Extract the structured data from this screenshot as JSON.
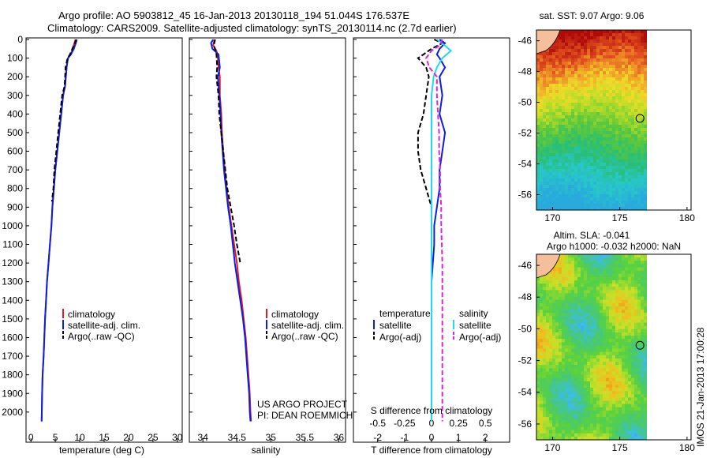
{
  "header": {
    "line1": "Argo profile: AO 5903812_45 16-Jan-2013 20130118_194 51.044S 176.537E",
    "line2": "Climatology: CARS2009. Satellite-adjusted climatology: synTS_20130114.nc (2.7d earlier)"
  },
  "colors": {
    "clim": "#e41a1c",
    "sat": "#0a1fe6",
    "argo": "#000000",
    "sat_sal": "#22d8ee",
    "argo_sal": "#dd22dd"
  },
  "chart_data": [
    {
      "type": "line",
      "xlabel": "temperature (deg C)",
      "ylabel": "",
      "xlim": [
        -1,
        31
      ],
      "ylim": [
        2060,
        0
      ],
      "xticks": [
        0,
        5,
        10,
        15,
        20,
        25,
        30
      ],
      "yticks": [
        0,
        100,
        200,
        300,
        400,
        500,
        600,
        700,
        800,
        900,
        1000,
        1100,
        1200,
        1300,
        1400,
        1500,
        1600,
        1700,
        1800,
        1900,
        2000
      ],
      "legend": [
        "climatology",
        "satellite-adj. clim.",
        "Argo(..raw -QC)"
      ],
      "series": [
        {
          "name": "climatology",
          "color": "#e41a1c",
          "dash": false,
          "x": [
            9.1,
            8.9,
            8.5,
            8.2,
            7.6,
            7.3,
            7.0,
            6.6,
            6.2,
            5.8,
            5.4,
            5.0,
            4.7,
            4.4,
            4.2,
            3.9,
            3.6,
            3.3,
            3.1,
            2.9,
            2.75,
            2.6,
            2.4,
            2.3,
            2.2
          ],
          "y": [
            0,
            20,
            50,
            80,
            100,
            150,
            250,
            300,
            400,
            500,
            600,
            700,
            800,
            900,
            1000,
            1100,
            1200,
            1300,
            1400,
            1500,
            1600,
            1700,
            1800,
            1900,
            2050
          ]
        },
        {
          "name": "satellite-adj. clim.",
          "color": "#0a1fe6",
          "dash": false,
          "x": [
            9.4,
            9.2,
            8.8,
            8.2,
            7.6,
            7.3,
            7.0,
            6.6,
            6.2,
            5.8,
            5.4,
            5.0,
            4.7,
            4.4,
            4.2,
            3.9,
            3.6,
            3.3,
            3.1,
            2.9,
            2.75,
            2.6,
            2.4,
            2.3,
            2.2
          ],
          "y": [
            0,
            20,
            50,
            80,
            100,
            150,
            250,
            300,
            400,
            500,
            600,
            700,
            800,
            900,
            1000,
            1100,
            1200,
            1300,
            1400,
            1500,
            1600,
            1700,
            1800,
            1900,
            2050
          ]
        },
        {
          "name": "Argo(..raw -QC)",
          "color": "#000000",
          "dash": true,
          "x": [
            9.3,
            9.0,
            8.5,
            8.0,
            7.5,
            7.1,
            6.9,
            6.4,
            6.0,
            5.6,
            5.2,
            4.8,
            4.6,
            4.3
          ],
          "y": [
            0,
            20,
            50,
            80,
            100,
            150,
            250,
            300,
            400,
            500,
            600,
            700,
            800,
            870
          ]
        }
      ]
    },
    {
      "type": "line",
      "xlabel": "salinity",
      "ylabel": "",
      "xlim": [
        33.8,
        36.1
      ],
      "ylim": [
        2060,
        0
      ],
      "xticks": [
        34,
        34.5,
        35,
        35.5,
        36
      ],
      "legend": [
        "climatology",
        "satellite-adj. clim.",
        "Argo(..raw -QC)"
      ],
      "annotation": [
        "US ARGO PROJECT",
        "PI: DEAN ROEMMICH"
      ],
      "series": [
        {
          "name": "climatology",
          "color": "#e41a1c",
          "dash": false,
          "x": [
            34.17,
            34.15,
            34.2,
            34.22,
            34.23,
            34.25,
            34.25,
            34.27,
            34.28,
            34.3,
            34.32,
            34.35,
            34.38,
            34.42,
            34.46,
            34.5,
            34.53,
            34.57,
            34.6,
            34.63,
            34.65,
            34.67,
            34.68,
            34.69,
            34.7,
            34.71
          ],
          "y": [
            0,
            30,
            60,
            100,
            150,
            200,
            300,
            400,
            500,
            600,
            700,
            800,
            900,
            1000,
            1100,
            1200,
            1300,
            1400,
            1500,
            1600,
            1700,
            1800,
            1850,
            1900,
            2000,
            2050
          ]
        },
        {
          "name": "satellite-adj. clim.",
          "color": "#0a1fe6",
          "dash": false,
          "x": [
            34.15,
            34.12,
            34.14,
            34.23,
            34.25,
            34.22,
            34.24,
            34.26,
            34.27,
            34.29,
            34.31,
            34.34,
            34.37,
            34.41,
            34.44,
            34.47,
            34.51,
            34.55,
            34.59,
            34.62,
            34.64,
            34.66,
            34.67,
            34.68,
            34.69,
            34.7
          ],
          "y": [
            0,
            20,
            50,
            80,
            150,
            200,
            300,
            400,
            500,
            600,
            700,
            800,
            900,
            1000,
            1100,
            1200,
            1300,
            1400,
            1500,
            1600,
            1700,
            1800,
            1850,
            1900,
            2000,
            2050
          ]
        },
        {
          "name": "Argo(..raw -QC)",
          "color": "#000000",
          "dash": true,
          "x": [
            34.18,
            34.16,
            34.2,
            34.21,
            34.2,
            34.23,
            34.24,
            34.27,
            34.3,
            34.33,
            34.36,
            34.41,
            34.46,
            34.5,
            34.55
          ],
          "y": [
            0,
            30,
            80,
            150,
            200,
            300,
            400,
            500,
            600,
            700,
            800,
            900,
            1000,
            1100,
            1200
          ]
        }
      ]
    },
    {
      "type": "line",
      "xlabel": "T difference from climatology",
      "xlabel_top": "S difference from climatology",
      "ylabel": "",
      "xlim": [
        -2.9,
        2.9
      ],
      "ylim": [
        2060,
        0
      ],
      "xticks": [
        -2,
        -1,
        0,
        1,
        2
      ],
      "xticks_top": [
        -0.5,
        -0.25,
        0,
        0.25,
        0.5
      ],
      "legend_temperature": {
        "title": "temperature",
        "items": [
          "satellite",
          "Argo(-adj)"
        ]
      },
      "legend_salinity": {
        "title": "salinity",
        "items": [
          "satellite",
          "Argo(-adj)"
        ]
      },
      "series": [
        {
          "name": "satellite",
          "group": "temperature",
          "color": "#0a1fe6",
          "dash": false,
          "x": [
            0.3,
            0.5,
            0.3,
            0.2,
            0.3,
            0.5,
            0.3,
            0.4,
            0.3,
            0.5,
            0.4,
            0.3,
            0.3,
            0.2,
            0.1,
            0.1,
            0.05,
            0.0,
            0.0,
            0.0,
            0.0,
            0.0,
            0.0,
            0.0,
            0.0
          ],
          "y": [
            0,
            20,
            50,
            80,
            100,
            150,
            200,
            300,
            400,
            500,
            600,
            700,
            800,
            900,
            1000,
            1100,
            1200,
            1300,
            1400,
            1500,
            1600,
            1700,
            1800,
            1900,
            2050
          ]
        },
        {
          "name": "Argo(-adj)",
          "group": "temperature",
          "color": "#000000",
          "dash": true,
          "x": [
            0.1,
            0.4,
            0.0,
            -0.3,
            -0.5,
            -0.2,
            -0.1,
            -0.2,
            -0.3,
            -0.5,
            -0.5,
            -0.4,
            -0.2,
            -0.1,
            0.0,
            0.0,
            0.0
          ],
          "y": [
            0,
            20,
            50,
            80,
            100,
            150,
            200,
            300,
            400,
            500,
            600,
            700,
            800,
            850,
            900,
            1000,
            1100
          ]
        },
        {
          "name": "satellite",
          "group": "salinity",
          "color": "#22d8ee",
          "dash": false,
          "x": [
            0.05,
            0.12,
            0.18,
            0.1,
            0.05,
            0.02,
            0.0,
            0.0,
            0.0,
            0.0,
            0.0,
            0.0,
            0.0,
            0.0,
            0.0,
            0.0,
            0.0,
            0.0,
            0.0,
            0.0,
            0.0
          ],
          "y": [
            0,
            30,
            60,
            100,
            150,
            200,
            300,
            400,
            500,
            600,
            700,
            800,
            900,
            1000,
            1200,
            1400,
            1600,
            1700,
            1800,
            1900,
            2050
          ]
        },
        {
          "name": "Argo(-adj)",
          "group": "salinity",
          "color": "#dd22dd",
          "dash": true,
          "x": [
            0.1,
            0.08,
            0.0,
            -0.05,
            -0.02,
            0.05,
            0.05,
            0.06,
            0.07,
            0.07,
            0.08,
            0.08,
            0.09,
            0.09,
            0.1,
            0.1,
            0.1,
            0.1,
            0.1,
            0.1,
            0.1
          ],
          "y": [
            0,
            30,
            60,
            100,
            150,
            200,
            300,
            400,
            500,
            600,
            700,
            800,
            900,
            1000,
            1200,
            1400,
            1600,
            1700,
            1800,
            1900,
            2050
          ]
        }
      ]
    },
    {
      "type": "heatmap",
      "title": "sat. SST: 9.07 Argo: 9.06",
      "xlim": [
        168.8,
        180.3
      ],
      "ylim": [
        -57.0,
        -45.3
      ],
      "xticks": [
        170,
        175,
        180
      ],
      "yticks": [
        -46,
        -48,
        -50,
        -52,
        -54,
        -56
      ],
      "marker": {
        "x": 176.5,
        "y": -51.04
      },
      "scale": "warm"
    },
    {
      "type": "heatmap",
      "title": "Altim. SLA: -0.041",
      "subtitle": "Argo h1000: -0.032 h2000: NaN",
      "xlim": [
        168.8,
        180.3
      ],
      "ylim": [
        -57.0,
        -45.3
      ],
      "xticks": [
        170,
        175,
        180
      ],
      "yticks": [
        -46,
        -48,
        -50,
        -52,
        -54,
        -56
      ],
      "marker": {
        "x": 176.5,
        "y": -51.04
      },
      "scale": "anomaly"
    }
  ],
  "stamp": "IMOS 21-Jan-2013 17:00:28"
}
